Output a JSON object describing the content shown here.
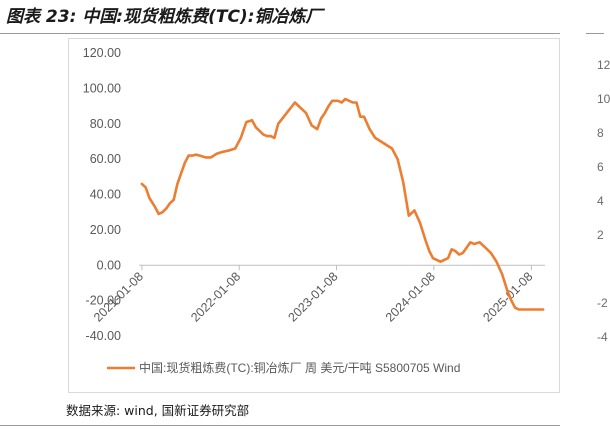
{
  "figure": {
    "title": "图表 23:  中国:现货粗炼费(TC):铜冶炼厂",
    "source": "数据来源:  wind,  国新证券研究部"
  },
  "colors": {
    "series": "#ED7D31",
    "axis_text": "#595959",
    "frame": "#D9D9D9"
  },
  "sibling_fragment": {
    "tick_labels": [
      "12",
      "10",
      "8",
      "6",
      "4",
      "2",
      "",
      "-2",
      "-4"
    ]
  },
  "chart_data": {
    "type": "line",
    "title": "",
    "xlabel": "",
    "ylabel": "",
    "ylim": [
      -40,
      120
    ],
    "yticks": [
      120,
      100,
      80,
      60,
      40,
      20,
      0,
      -20,
      -40
    ],
    "ytick_labels": [
      "120.00",
      "100.00",
      "80.00",
      "60.00",
      "40.00",
      "20.00",
      "0.00",
      "-20.00",
      "-40.00"
    ],
    "xlim": [
      "2020-12-28",
      "2025-02-28"
    ],
    "xticks": [
      "2021-01-08",
      "2022-01-08",
      "2023-01-08",
      "2024-01-08",
      "2025-01-08"
    ],
    "xtick_labels": [
      "2021-01-08",
      "2022-01-08",
      "2023-01-08",
      "2024-01-08",
      "2025-01-08"
    ],
    "grid": false,
    "legend_position": "bottom",
    "series": [
      {
        "name": "中国:现货粗炼费(TC):铜冶炼厂 周 美元/干吨 S5800705 Wind",
        "x": [
          "2021-01-08",
          "2021-01-22",
          "2021-02-05",
          "2021-02-26",
          "2021-03-12",
          "2021-03-26",
          "2021-04-09",
          "2021-04-23",
          "2021-05-07",
          "2021-05-21",
          "2021-06-04",
          "2021-06-18",
          "2021-07-02",
          "2021-07-16",
          "2021-07-30",
          "2021-08-13",
          "2021-09-03",
          "2021-09-24",
          "2021-10-15",
          "2021-11-05",
          "2021-12-03",
          "2021-12-24",
          "2022-01-14",
          "2022-02-04",
          "2022-02-25",
          "2022-03-11",
          "2022-03-25",
          "2022-04-08",
          "2022-04-22",
          "2022-05-06",
          "2022-05-20",
          "2022-06-03",
          "2022-06-24",
          "2022-07-15",
          "2022-08-05",
          "2022-08-26",
          "2022-09-16",
          "2022-10-07",
          "2022-10-28",
          "2022-11-11",
          "2022-11-25",
          "2022-12-09",
          "2022-12-23",
          "2023-01-13",
          "2023-01-27",
          "2023-02-10",
          "2023-02-24",
          "2023-03-10",
          "2023-03-24",
          "2023-04-07",
          "2023-04-21",
          "2023-05-12",
          "2023-06-02",
          "2023-06-23",
          "2023-07-14",
          "2023-08-04",
          "2023-08-25",
          "2023-09-15",
          "2023-10-06",
          "2023-10-27",
          "2023-11-17",
          "2023-12-08",
          "2023-12-22",
          "2024-01-05",
          "2024-01-19",
          "2024-02-02",
          "2024-02-16",
          "2024-03-01",
          "2024-03-15",
          "2024-03-29",
          "2024-04-12",
          "2024-04-26",
          "2024-05-10",
          "2024-05-24",
          "2024-06-07",
          "2024-06-28",
          "2024-07-19",
          "2024-08-09",
          "2024-08-30",
          "2024-09-20",
          "2024-10-11",
          "2024-10-25",
          "2024-11-08",
          "2024-11-22",
          "2024-12-06",
          "2024-12-20",
          "2025-01-03",
          "2025-01-17",
          "2025-01-31",
          "2025-02-14",
          "2025-02-21"
        ],
        "values": [
          46,
          44,
          38,
          33,
          29,
          30,
          32,
          35,
          37,
          46,
          52,
          58,
          62,
          62,
          62.5,
          62,
          61,
          61,
          63,
          64,
          65,
          66,
          72,
          81,
          82,
          78,
          76,
          74,
          73,
          73,
          72,
          80,
          84,
          88,
          92,
          89,
          86,
          79,
          77,
          83,
          86,
          90,
          93,
          93,
          92,
          94,
          93,
          92,
          92,
          84,
          84,
          77,
          72,
          70,
          68,
          66,
          60,
          47,
          28,
          31,
          24,
          14,
          8,
          4,
          3,
          2,
          3,
          4,
          9,
          8,
          6,
          7,
          10,
          13,
          12,
          13,
          10,
          7,
          2,
          -5,
          -15,
          -20,
          -24,
          -25,
          -25,
          -25,
          -25,
          -25,
          -25,
          -25,
          -25
        ]
      }
    ]
  }
}
